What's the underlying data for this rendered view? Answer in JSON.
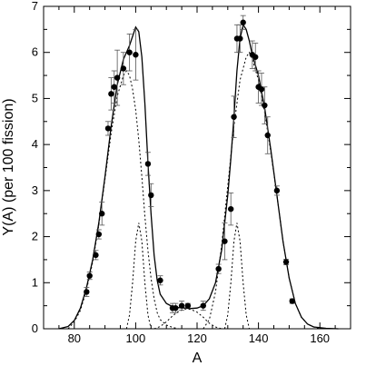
{
  "chart_data": {
    "type": "scatter",
    "xlabel": "A",
    "ylabel": "Y(A) (per 100 fission)",
    "xlim": [
      70,
      170
    ],
    "ylim": [
      0,
      7
    ],
    "xticks": [
      80,
      100,
      120,
      140,
      160
    ],
    "yticks": [
      0,
      1,
      2,
      3,
      4,
      5,
      6,
      7
    ],
    "grid": false,
    "series": [
      {
        "kind": "points",
        "points": [
          {
            "x": 84,
            "y": 0.8,
            "err": 0.1
          },
          {
            "x": 85,
            "y": 1.15,
            "err": 0.08
          },
          {
            "x": 87,
            "y": 1.6,
            "err": 0.1
          },
          {
            "x": 88,
            "y": 2.05,
            "err": 0.1
          },
          {
            "x": 89,
            "y": 2.5,
            "err": 0.25
          },
          {
            "x": 91,
            "y": 4.35,
            "err": 0.15
          },
          {
            "x": 92,
            "y": 5.1,
            "err": 0.35
          },
          {
            "x": 93,
            "y": 5.25,
            "err": 0.35
          },
          {
            "x": 94,
            "y": 5.45,
            "err": 0.6
          },
          {
            "x": 96,
            "y": 5.65,
            "err": 0.35
          },
          {
            "x": 98,
            "y": 6.0,
            "err": 0.4
          },
          {
            "x": 100,
            "y": 5.95,
            "err": 0.55
          },
          {
            "x": 104,
            "y": 3.58,
            "err": 0.25
          },
          {
            "x": 105,
            "y": 2.9,
            "err": 0.25
          },
          {
            "x": 108,
            "y": 1.05,
            "err": 0.1
          },
          {
            "x": 112,
            "y": 0.45,
            "err": 0.1
          },
          {
            "x": 113,
            "y": 0.45,
            "err": 0.1
          },
          {
            "x": 115,
            "y": 0.5,
            "err": 0.1
          },
          {
            "x": 117,
            "y": 0.5,
            "err": 0.05
          },
          {
            "x": 122,
            "y": 0.5,
            "err": 0.1
          },
          {
            "x": 127,
            "y": 1.3,
            "err": 0.1
          },
          {
            "x": 129,
            "y": 1.9,
            "err": 0.4
          },
          {
            "x": 131,
            "y": 2.6,
            "err": 0.35
          },
          {
            "x": 132,
            "y": 4.6,
            "err": 0.45
          },
          {
            "x": 133,
            "y": 6.3,
            "err": 0.3
          },
          {
            "x": 134,
            "y": 6.3,
            "err": 0.3
          },
          {
            "x": 135,
            "y": 6.65,
            "err": 0.15
          },
          {
            "x": 138,
            "y": 5.95,
            "err": 0.3
          },
          {
            "x": 139,
            "y": 5.9,
            "err": 0.3
          },
          {
            "x": 140,
            "y": 5.25,
            "err": 0.35
          },
          {
            "x": 141,
            "y": 5.2,
            "err": 0.35
          },
          {
            "x": 142,
            "y": 4.85,
            "err": 0.4
          },
          {
            "x": 143,
            "y": 4.2,
            "err": 0.4
          },
          {
            "x": 146,
            "y": 3.0,
            "err": 0.1
          },
          {
            "x": 149,
            "y": 1.45,
            "err": 0.06
          },
          {
            "x": 151,
            "y": 0.6,
            "err": 0.05
          }
        ]
      },
      {
        "kind": "line",
        "style": "solid",
        "points": [
          [
            75,
            0
          ],
          [
            78,
            0.05
          ],
          [
            80,
            0.18
          ],
          [
            82,
            0.45
          ],
          [
            84,
            0.9
          ],
          [
            86,
            1.5
          ],
          [
            88,
            2.3
          ],
          [
            90,
            3.3
          ],
          [
            92,
            4.4
          ],
          [
            94,
            5.3
          ],
          [
            96,
            5.85
          ],
          [
            98,
            6.15
          ],
          [
            99,
            6.35
          ],
          [
            100,
            6.55
          ],
          [
            101,
            6.45
          ],
          [
            102,
            5.9
          ],
          [
            103,
            4.9
          ],
          [
            104,
            3.6
          ],
          [
            105,
            2.5
          ],
          [
            106,
            1.6
          ],
          [
            107,
            1.05
          ],
          [
            108,
            0.75
          ],
          [
            110,
            0.55
          ],
          [
            112,
            0.48
          ],
          [
            114,
            0.46
          ],
          [
            116,
            0.45
          ],
          [
            118,
            0.44
          ],
          [
            120,
            0.45
          ],
          [
            122,
            0.5
          ],
          [
            124,
            0.65
          ],
          [
            126,
            1.0
          ],
          [
            128,
            1.7
          ],
          [
            130,
            2.9
          ],
          [
            131,
            3.7
          ],
          [
            132,
            4.6
          ],
          [
            133,
            5.6
          ],
          [
            134,
            6.3
          ],
          [
            135,
            6.6
          ],
          [
            136,
            6.5
          ],
          [
            137,
            6.25
          ],
          [
            138,
            5.95
          ],
          [
            140,
            5.5
          ],
          [
            142,
            4.8
          ],
          [
            144,
            3.9
          ],
          [
            146,
            2.9
          ],
          [
            148,
            1.9
          ],
          [
            150,
            1.1
          ],
          [
            152,
            0.55
          ],
          [
            154,
            0.25
          ],
          [
            156,
            0.1
          ],
          [
            158,
            0.04
          ],
          [
            162,
            0.01
          ],
          [
            166,
            0
          ]
        ]
      },
      {
        "kind": "line",
        "style": "dotted",
        "points": [
          [
            78,
            0
          ],
          [
            80,
            0.15
          ],
          [
            82,
            0.4
          ],
          [
            84,
            0.85
          ],
          [
            86,
            1.45
          ],
          [
            88,
            2.25
          ],
          [
            90,
            3.25
          ],
          [
            92,
            4.25
          ],
          [
            94,
            5.05
          ],
          [
            96,
            5.5
          ],
          [
            97,
            5.6
          ],
          [
            98,
            5.5
          ],
          [
            99,
            5.2
          ],
          [
            100,
            4.75
          ],
          [
            101,
            4.1
          ],
          [
            102,
            3.3
          ],
          [
            103,
            2.45
          ],
          [
            104,
            1.7
          ],
          [
            105,
            1.1
          ],
          [
            106,
            0.65
          ],
          [
            107,
            0.35
          ],
          [
            108,
            0.2
          ],
          [
            110,
            0.08
          ],
          [
            112,
            0.03
          ],
          [
            114,
            0
          ]
        ]
      },
      {
        "kind": "line",
        "style": "dotted",
        "points": [
          [
            97,
            0
          ],
          [
            98,
            0.3
          ],
          [
            99,
            1.0
          ],
          [
            100,
            1.9
          ],
          [
            101,
            2.3
          ],
          [
            102,
            1.9
          ],
          [
            103,
            1.0
          ],
          [
            104,
            0.3
          ],
          [
            105,
            0
          ]
        ]
      },
      {
        "kind": "line",
        "style": "dotted",
        "points": [
          [
            106,
            0
          ],
          [
            108,
            0.05
          ],
          [
            110,
            0.15
          ],
          [
            112,
            0.28
          ],
          [
            114,
            0.38
          ],
          [
            116,
            0.43
          ],
          [
            118,
            0.42
          ],
          [
            120,
            0.36
          ],
          [
            122,
            0.25
          ],
          [
            124,
            0.12
          ],
          [
            126,
            0.04
          ],
          [
            128,
            0
          ]
        ]
      },
      {
        "kind": "line",
        "style": "dotted",
        "points": [
          [
            129,
            0
          ],
          [
            130,
            0.3
          ],
          [
            131,
            1.0
          ],
          [
            132,
            1.9
          ],
          [
            133,
            2.3
          ],
          [
            134,
            1.9
          ],
          [
            135,
            1.0
          ],
          [
            136,
            0.3
          ],
          [
            137,
            0
          ]
        ]
      },
      {
        "kind": "line",
        "style": "dotted",
        "points": [
          [
            122,
            0
          ],
          [
            124,
            0.2
          ],
          [
            126,
            0.8
          ],
          [
            128,
            1.8
          ],
          [
            130,
            3.1
          ],
          [
            132,
            4.4
          ],
          [
            134,
            5.4
          ],
          [
            136,
            5.9
          ],
          [
            137,
            6.0
          ],
          [
            138,
            5.85
          ],
          [
            140,
            5.4
          ],
          [
            142,
            4.7
          ],
          [
            144,
            3.85
          ],
          [
            146,
            2.9
          ],
          [
            148,
            1.9
          ],
          [
            150,
            1.1
          ],
          [
            152,
            0.55
          ],
          [
            154,
            0.25
          ],
          [
            156,
            0.1
          ],
          [
            158,
            0.04
          ],
          [
            160,
            0
          ]
        ]
      }
    ]
  }
}
